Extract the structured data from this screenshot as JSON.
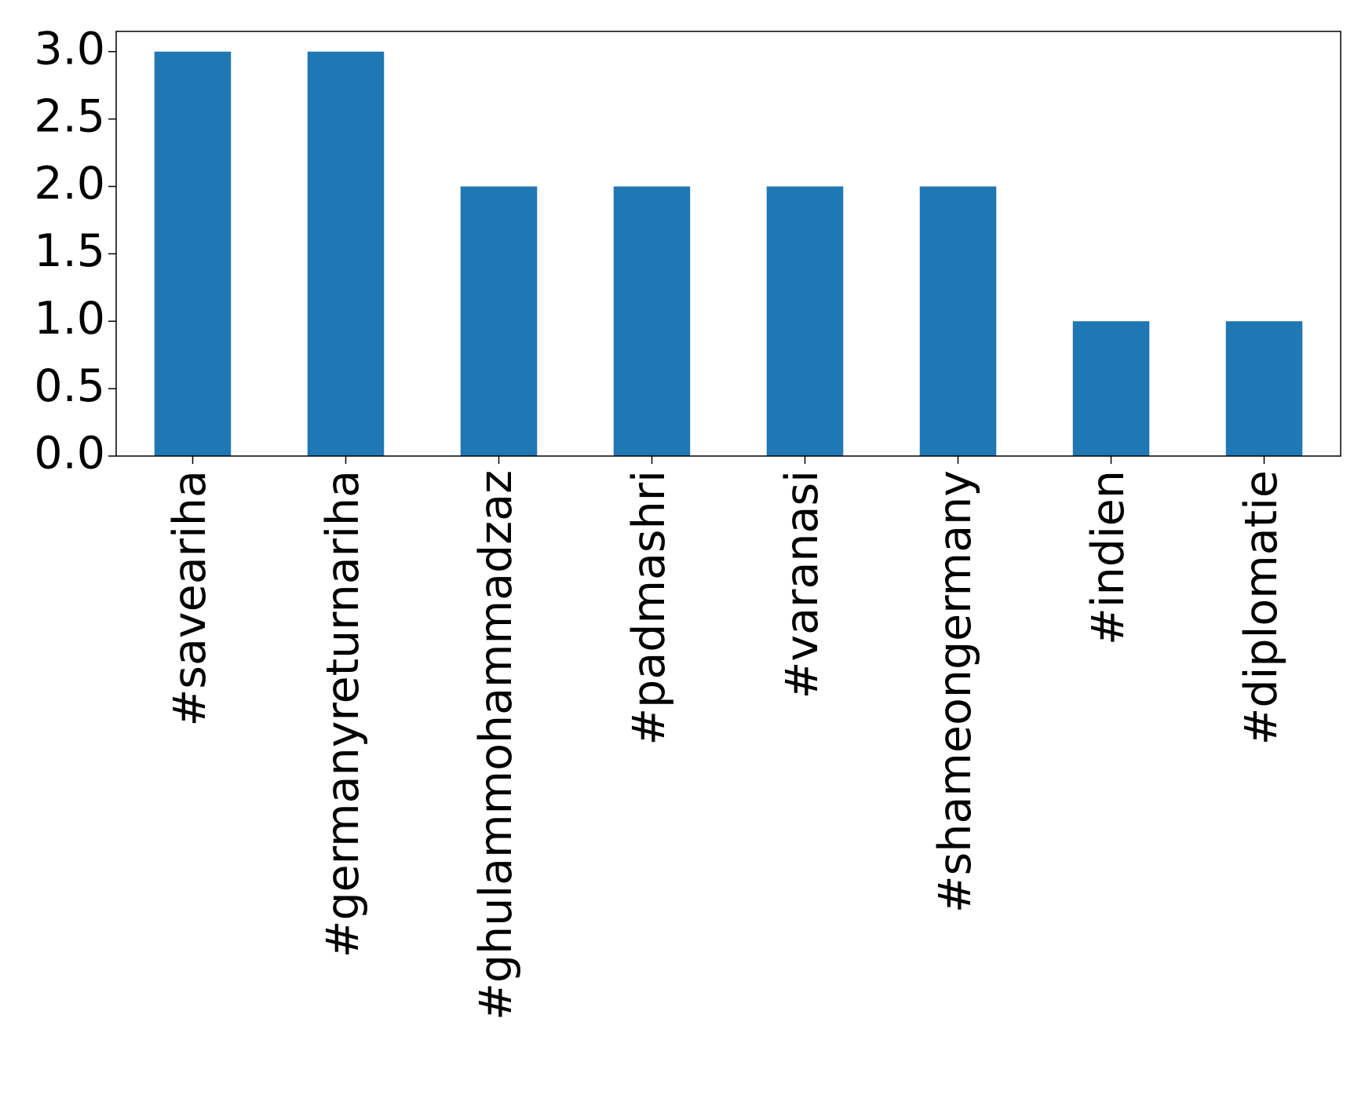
{
  "chart_data": {
    "type": "bar",
    "categories": [
      "#savearihа",
      "#germanyreturnariha",
      "#ghulammohammadzaz",
      "#padmashri",
      "#varanasi",
      "#shameongermany",
      "#indien",
      "#diplomatie"
    ],
    "values": [
      3,
      3,
      2,
      2,
      2,
      2,
      1,
      1
    ],
    "color": "#1f77b4",
    "ylim": [
      0,
      3.15
    ],
    "yticks": [
      {
        "value": 0,
        "label": "0.0"
      },
      {
        "value": 0.5,
        "label": "0.5"
      },
      {
        "value": 1,
        "label": "1.0"
      },
      {
        "value": 1.5,
        "label": "1.5"
      },
      {
        "value": 2,
        "label": "2.0"
      },
      {
        "value": 2.5,
        "label": "2.5"
      },
      {
        "value": 3,
        "label": "3.0"
      }
    ],
    "grid": false
  }
}
